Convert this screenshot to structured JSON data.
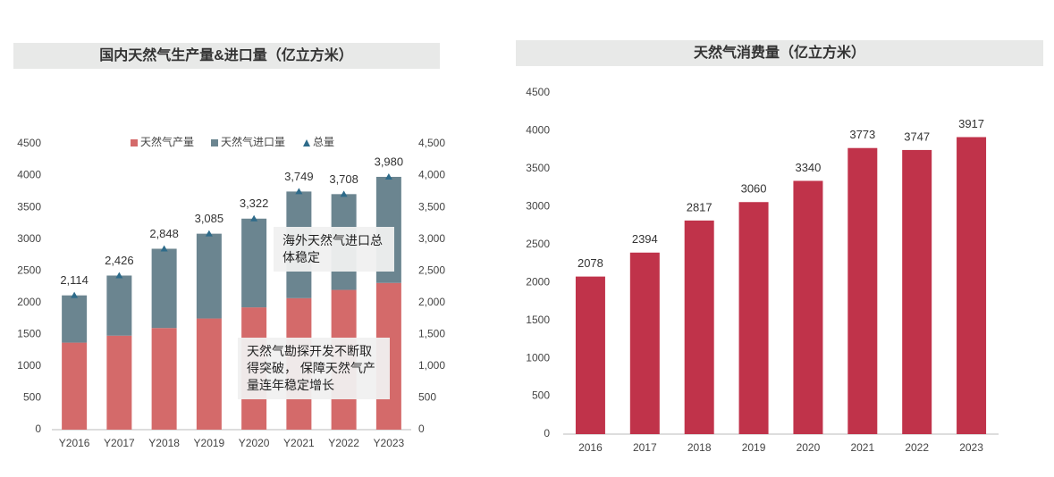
{
  "chart_data": [
    {
      "type": "bar",
      "stacked": true,
      "title": "国内天然气生产量&进口量（亿立方米）",
      "categories": [
        "Y2016",
        "Y2017",
        "Y2018",
        "Y2019",
        "Y2020",
        "Y2021",
        "Y2022",
        "Y2023"
      ],
      "series": [
        {
          "name": "天然气产量",
          "color": "#d46a6a",
          "values": [
            1370,
            1480,
            1600,
            1750,
            1925,
            2070,
            2200,
            2310
          ]
        },
        {
          "name": "天然气进口量",
          "color": "#6b8590",
          "values": [
            744,
            946,
            1248,
            1335,
            1397,
            1679,
            1508,
            1670
          ]
        },
        {
          "name": "总量",
          "type": "marker",
          "color": "#2e6b8a",
          "values": [
            2114,
            2426,
            2848,
            3085,
            3322,
            3749,
            3708,
            3980
          ],
          "value_labels": [
            "2,114",
            "2,426",
            "2,848",
            "3,085",
            "3,322",
            "3,749",
            "3,708",
            "3,980"
          ]
        }
      ],
      "ylim": [
        0,
        4500
      ],
      "yticks": [
        0,
        500,
        1000,
        1500,
        2000,
        2500,
        3000,
        3500,
        4000,
        4500
      ],
      "y2lim": [
        0,
        4500
      ],
      "y2ticks": [
        0,
        500,
        {
          "value": 1000,
          "label": "1,000"
        },
        {
          "value": 1500,
          "label": "1,500"
        },
        {
          "value": 2000,
          "label": "2,000"
        },
        {
          "value": 2500,
          "label": "2,500"
        },
        {
          "value": 3000,
          "label": "3,000"
        },
        {
          "value": 3500,
          "label": "3,500"
        },
        {
          "value": 4000,
          "label": "4,000"
        },
        {
          "value": 4500,
          "label": "4,500"
        }
      ],
      "legend": "top",
      "annotations": [
        "海外天然气进口总体稳定",
        "天然气勘探开发不断取得突破， 保障天然气产量连年稳定增长"
      ]
    },
    {
      "type": "bar",
      "title": "天然气消费量（亿立方米）",
      "categories": [
        "2016",
        "2017",
        "2018",
        "2019",
        "2020",
        "2021",
        "2022",
        "2023"
      ],
      "values": [
        2078,
        2394,
        2817,
        3060,
        3340,
        3773,
        3747,
        3917
      ],
      "color": "#c0334a",
      "ylim": [
        0,
        4500
      ],
      "yticks": [
        0,
        500,
        1000,
        1500,
        2000,
        2500,
        3000,
        3500,
        4000,
        4500
      ]
    }
  ]
}
